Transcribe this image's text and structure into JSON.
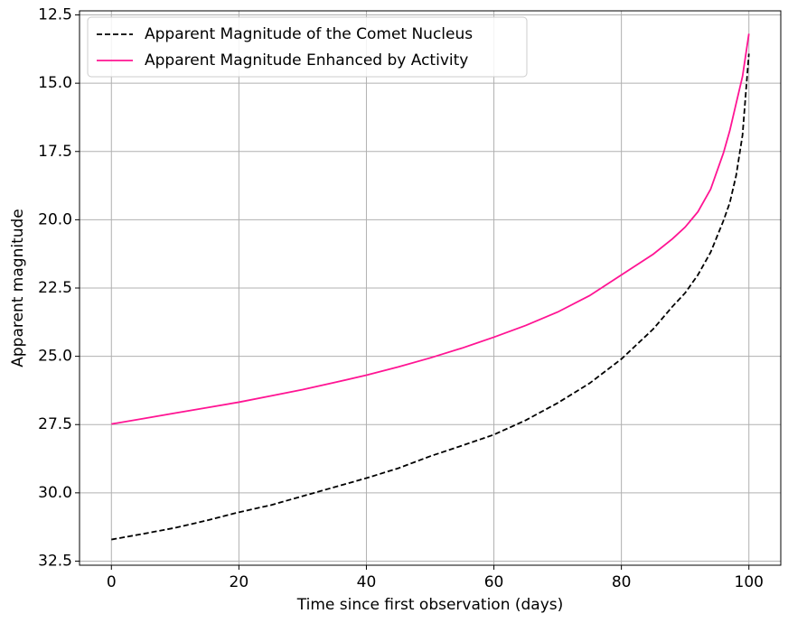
{
  "chart_data": {
    "type": "line",
    "xlabel": "Time since first observation (days)",
    "ylabel": "Apparent magnitude",
    "x": [
      0,
      5,
      10,
      15,
      20,
      25,
      30,
      35,
      40,
      45,
      50,
      55,
      60,
      65,
      70,
      75,
      80,
      85,
      88,
      90,
      92,
      94,
      96,
      97,
      98,
      99,
      100
    ],
    "series": [
      {
        "name": "Apparent Magnitude of the Comet Nucleus",
        "color": "#000000",
        "linestyle": "dashed",
        "values": [
          31.71,
          31.5,
          31.28,
          31.01,
          30.71,
          30.45,
          30.12,
          29.79,
          29.46,
          29.1,
          28.66,
          28.27,
          27.87,
          27.34,
          26.71,
          25.99,
          25.1,
          24.0,
          23.18,
          22.68,
          22.02,
          21.19,
          20.04,
          19.38,
          18.38,
          16.9,
          13.92
        ]
      },
      {
        "name": "Apparent Magnitude Enhanced by Activity",
        "color": "#ff1493",
        "linestyle": "solid",
        "values": [
          27.48,
          27.28,
          27.08,
          26.88,
          26.68,
          26.45,
          26.22,
          25.96,
          25.69,
          25.39,
          25.06,
          24.7,
          24.3,
          23.87,
          23.38,
          22.78,
          22.02,
          21.26,
          20.7,
          20.27,
          19.71,
          18.88,
          17.56,
          16.74,
          15.74,
          14.75,
          13.19
        ]
      }
    ],
    "xlim": [
      -5,
      105
    ],
    "xticks": [
      0,
      20,
      40,
      60,
      80,
      100
    ],
    "ylim": [
      32.65,
      12.35
    ],
    "yticks": [
      12.5,
      {
        "value": 15,
        "label": "15.0"
      },
      17.5,
      {
        "value": 20,
        "label": "20.0"
      },
      22.5,
      {
        "value": 25,
        "label": "25.0"
      },
      27.5,
      {
        "value": 30,
        "label": "30.0"
      },
      32.5
    ],
    "grid": true,
    "legend": "upper left"
  }
}
